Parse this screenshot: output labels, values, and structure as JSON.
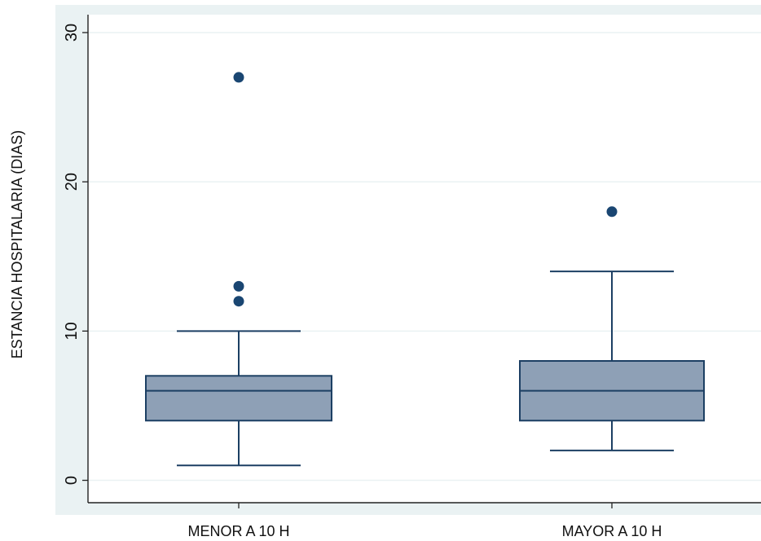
{
  "chart_data": {
    "type": "box",
    "xlabel": "",
    "ylabel": "ESTANCIA HOSPITALARIA (DIAS)",
    "ylim": [
      -1.5,
      31.2
    ],
    "yticks": [
      0,
      10,
      20,
      30
    ],
    "grid": true,
    "categories": [
      "MENOR A 10 H",
      "MAYOR A 10 H"
    ],
    "boxes": [
      {
        "category": "MENOR A 10 H",
        "whisker_low": 1,
        "q1": 4,
        "median": 6,
        "q3": 7,
        "whisker_high": 10,
        "outliers": [
          12,
          13,
          27
        ]
      },
      {
        "category": "MAYOR A 10 H",
        "whisker_low": 2,
        "q1": 4,
        "median": 6,
        "q3": 8,
        "whisker_high": 14,
        "outliers": [
          18
        ]
      }
    ],
    "colors": {
      "plot_background": "#eaf2f3",
      "box_fill": "#8ea0b6",
      "box_stroke": "#1c3f63",
      "outlier": "#1a4672",
      "gridline": "#eaf2f3"
    }
  }
}
